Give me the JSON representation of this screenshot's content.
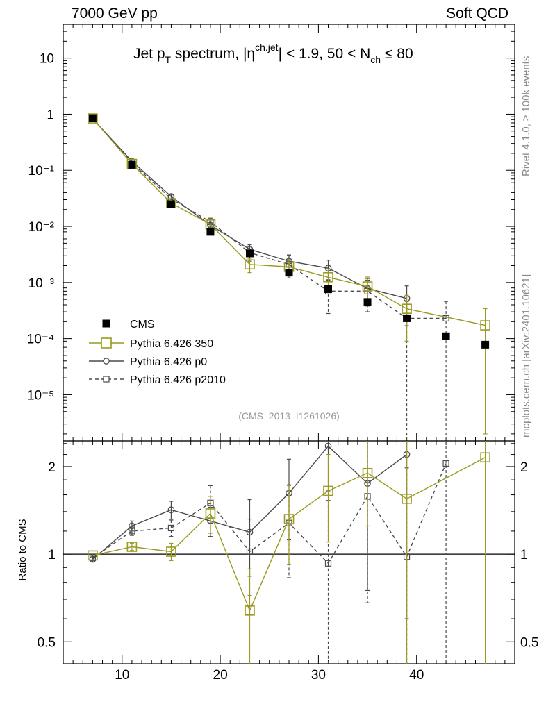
{
  "header": {
    "left": "7000 GeV pp",
    "right": "Soft QCD"
  },
  "side_text": {
    "upper": "Rivet 4.1.0, ≥ 100k events",
    "lower": "mcplots.cern.ch [arXiv:2401.10621]"
  },
  "colors": {
    "cms": "#000000",
    "p350": "#9a9a1e",
    "p0": "#4a4a4a",
    "p2010": "#4a4a4a"
  },
  "chart_data": [
    {
      "panel": "main",
      "type": "scatter",
      "title": "Jet p_T spectrum, |η^{ch.jet}| < 1.9, 50 < N_ch ≤ 80",
      "title_parts": {
        "a": "Jet p",
        "a_sub": "T",
        "b": " spectrum, |η",
        "b_sup": "ch.jet",
        "c": "| < 1.9, 50 < N",
        "c_sub": "ch",
        "d": " ≤ 80"
      },
      "analysis_id": "(CMS_2013_I1261026)",
      "x_axis": {
        "range": [
          4,
          50
        ],
        "ticks": [
          10,
          20,
          30,
          40
        ]
      },
      "y_axis": {
        "scale": "log",
        "range": [
          1.5e-06,
          40
        ],
        "tick_labels": [
          "10",
          "1",
          "10⁻¹",
          "10⁻²",
          "10⁻³",
          "10⁻⁴",
          "10⁻⁵"
        ]
      },
      "legend": [
        "CMS",
        "Pythia 6.426 350",
        "Pythia 6.426 p0",
        "Pythia 6.426 p2010"
      ],
      "series": [
        {
          "name": "CMS",
          "x": [
            7,
            11,
            15,
            19,
            23,
            27,
            31,
            35,
            39,
            43,
            47
          ],
          "y": [
            0.85,
            0.125,
            0.025,
            0.008,
            0.0033,
            0.0015,
            0.00076,
            0.00045,
            0.00023,
            0.00011,
            7.8e-05
          ]
        },
        {
          "name": "Pythia 6.426 350",
          "x": [
            7,
            11,
            15,
            19,
            23,
            27,
            31,
            35,
            39,
            43,
            47
          ],
          "y": [
            0.84,
            0.13,
            0.026,
            0.0108,
            0.0021,
            0.0019,
            0.00124,
            0.00085,
            0.00034,
            null,
            0.000172
          ],
          "yerr": [
            null,
            null,
            null,
            null,
            0.0006,
            0.0006,
            0.0005,
            0.0004,
            0.00025,
            null,
            0.00017
          ]
        },
        {
          "name": "Pythia 6.426 p0",
          "x": [
            7,
            11,
            15,
            19,
            23,
            27,
            31,
            35,
            39
          ],
          "y": [
            0.83,
            0.145,
            0.034,
            0.0105,
            0.0039,
            0.0024,
            0.0018,
            0.00078,
            0.00052
          ],
          "yerr": [
            null,
            null,
            0.003,
            0.001,
            0.0008,
            0.0007,
            0.0007,
            0.0004,
            0.00035
          ]
        },
        {
          "name": "Pythia 6.426 p2010",
          "x": [
            7,
            11,
            15,
            19,
            23,
            27,
            31,
            35,
            39,
            43
          ],
          "y": [
            0.84,
            0.135,
            0.031,
            0.012,
            0.0034,
            0.0021,
            0.0007,
            0.0007,
            0.00023,
            0.00023
          ],
          "yerr": [
            null,
            null,
            null,
            0.002,
            0.001,
            0.0009,
            0.00042,
            0.0004,
            0.00023,
            0.00023
          ]
        }
      ]
    },
    {
      "panel": "ratio",
      "type": "line",
      "ylabel": "Ratio to CMS",
      "x_axis": {
        "range": [
          4,
          50
        ],
        "ticks": [
          10,
          20,
          30,
          40
        ],
        "tick_labels": [
          "10",
          "20",
          "30",
          "40"
        ]
      },
      "y_axis": {
        "scale": "log",
        "range": [
          0.42,
          2.45
        ],
        "tick_values": [
          0.5,
          1,
          2
        ],
        "tick_labels": [
          "0.5",
          "1",
          "2"
        ]
      },
      "series": [
        {
          "name": "Pythia 6.426 350",
          "x": [
            7,
            11,
            15,
            19,
            23,
            27,
            31,
            35,
            39,
            47
          ],
          "y": [
            0.99,
            1.06,
            1.02,
            1.38,
            0.64,
            1.32,
            1.65,
            1.9,
            1.55,
            2.15
          ],
          "yerr": [
            0,
            0.03,
            0.07,
            0.2,
            0.25,
            0.4,
            0.55,
            0.65,
            1.3,
            2.0
          ]
        },
        {
          "name": "Pythia 6.426 p0",
          "x": [
            7,
            11,
            15,
            19,
            23,
            27,
            31,
            35,
            39
          ],
          "y": [
            0.96,
            1.25,
            1.42,
            1.3,
            1.19,
            1.62,
            2.35,
            1.75,
            2.2
          ],
          "yerr": [
            0.02,
            0.05,
            0.1,
            0.15,
            0.35,
            0.5,
            0.7,
            1.0,
            1.6
          ]
        },
        {
          "name": "Pythia 6.426 p2010",
          "x": [
            7,
            11,
            15,
            19,
            23,
            27,
            31,
            35,
            39,
            43
          ],
          "y": [
            0.97,
            1.2,
            1.23,
            1.5,
            1.02,
            1.28,
            0.93,
            1.58,
            0.98,
            2.05
          ],
          "yerr": [
            0.02,
            0.04,
            0.08,
            0.22,
            0.3,
            0.45,
            0.6,
            0.9,
            1.0,
            2.0
          ]
        }
      ]
    }
  ]
}
